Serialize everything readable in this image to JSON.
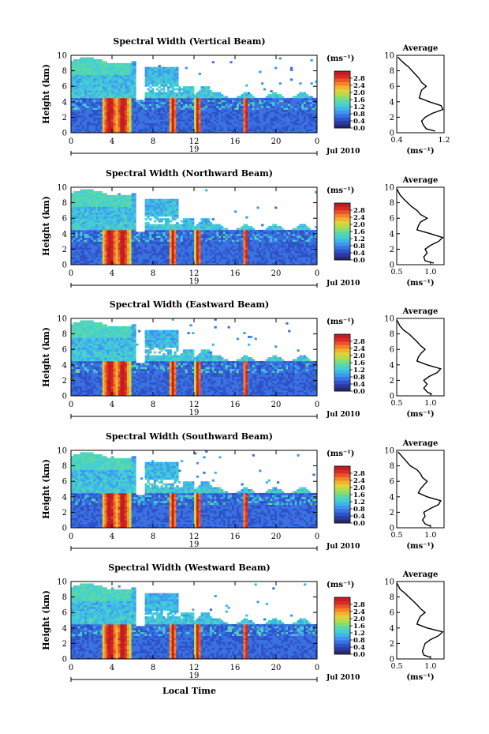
{
  "colors": {
    "colormap": [
      "#2a2a6e",
      "#2a3aa0",
      "#2f52c8",
      "#3a72e0",
      "#3f95f0",
      "#3fb6e8",
      "#45cfd0",
      "#5ad8a8",
      "#86dc78",
      "#b5dc4a",
      "#e0d23a",
      "#f4b02e",
      "#f4822a",
      "#ea5228",
      "#d82a26",
      "#c01e22"
    ],
    "missing": "#ffffff"
  },
  "xlabel": "Local Time",
  "date_label": "Jul 2010",
  "average_title": "Average",
  "colorbar_unit": "(ms⁻¹)",
  "chart_data": [
    {
      "type": "heatmap",
      "title": "Spectral Width (Vertical Beam)",
      "ylabel": "Height (km)",
      "xlim": [
        0,
        24
      ],
      "ylim": [
        0,
        10
      ],
      "xticks": [
        "0",
        "4",
        "8",
        "12",
        "16",
        "20",
        "0"
      ],
      "yticks": [
        "0",
        "2",
        "4",
        "6",
        "8",
        "10"
      ],
      "day_label": "19",
      "colorbar": {
        "ticks": [
          "0.0",
          "0.4",
          "0.8",
          "1.2",
          "1.6",
          "2.0",
          "2.4",
          "2.8"
        ],
        "range": [
          0,
          3.2
        ]
      },
      "average": {
        "xlim": [
          0.4,
          1.2
        ],
        "xticks": [
          "0.4",
          "1.2"
        ],
        "xlabel": "(ms⁻¹)",
        "heights": [
          0.2,
          0.5,
          1.0,
          1.5,
          2.0,
          2.5,
          3.0,
          3.5,
          4.0,
          4.5,
          5.0,
          5.5,
          6.0,
          6.5,
          7.0,
          7.5,
          8.0,
          8.5,
          9.0,
          9.5,
          9.8
        ],
        "values": [
          1.05,
          0.9,
          0.85,
          0.82,
          0.88,
          1.0,
          1.18,
          1.15,
          0.95,
          0.78,
          0.8,
          0.82,
          0.9,
          0.82,
          0.78,
          0.72,
          0.66,
          0.6,
          0.52,
          0.45,
          0.42
        ]
      }
    },
    {
      "type": "heatmap",
      "title": "Spectral Width (Northward Beam)",
      "ylabel": "Height (km)",
      "xlim": [
        0,
        24
      ],
      "ylim": [
        0,
        10
      ],
      "xticks": [
        "0",
        "4",
        "8",
        "12",
        "16",
        "20",
        "0"
      ],
      "yticks": [
        "0",
        "2",
        "4",
        "6",
        "8",
        "10"
      ],
      "day_label": "19",
      "colorbar": {
        "ticks": [
          "0.0",
          "0.4",
          "0.8",
          "1.2",
          "1.6",
          "2.0",
          "2.4",
          "2.8"
        ],
        "range": [
          0,
          3.2
        ]
      },
      "average": {
        "xlim": [
          0.5,
          1.2
        ],
        "xticks": [
          "0.5",
          "1.0"
        ],
        "xlabel": "(ms⁻¹)",
        "heights": [
          0.2,
          0.5,
          1.0,
          1.5,
          2.0,
          2.5,
          3.0,
          3.5,
          4.0,
          4.5,
          5.0,
          5.5,
          6.0,
          6.5,
          7.0,
          7.5,
          8.0,
          8.5,
          9.0,
          9.5,
          9.8
        ],
        "values": [
          1.05,
          0.92,
          0.9,
          0.95,
          0.92,
          1.0,
          1.12,
          1.18,
          1.0,
          0.8,
          0.82,
          0.85,
          0.95,
          0.85,
          0.8,
          0.72,
          0.66,
          0.6,
          0.55,
          0.52,
          0.5
        ]
      }
    },
    {
      "type": "heatmap",
      "title": "Spectral Width (Eastward Beam)",
      "ylabel": "Height (km)",
      "xlim": [
        0,
        24
      ],
      "ylim": [
        0,
        10
      ],
      "xticks": [
        "0",
        "4",
        "8",
        "12",
        "16",
        "20",
        "0"
      ],
      "yticks": [
        "0",
        "2",
        "4",
        "6",
        "8",
        "10"
      ],
      "day_label": "19",
      "colorbar": {
        "ticks": [
          "0.0",
          "0.4",
          "0.8",
          "1.2",
          "1.6",
          "2.0",
          "2.4",
          "2.8"
        ],
        "range": [
          0,
          3.2
        ]
      },
      "average": {
        "xlim": [
          0.5,
          1.2
        ],
        "xticks": [
          "0.5",
          "1.0"
        ],
        "xlabel": "(ms⁻¹)",
        "heights": [
          0.2,
          0.5,
          1.0,
          1.5,
          2.0,
          2.5,
          3.0,
          3.5,
          4.0,
          4.5,
          5.0,
          5.5,
          6.0,
          6.5,
          7.0,
          7.5,
          8.0,
          8.5,
          9.0,
          9.5,
          9.8
        ],
        "values": [
          1.02,
          0.95,
          0.9,
          0.95,
          0.9,
          0.98,
          1.1,
          1.15,
          0.95,
          0.8,
          0.82,
          0.86,
          0.92,
          0.85,
          0.8,
          0.74,
          0.68,
          0.6,
          0.55,
          0.52,
          0.5
        ]
      }
    },
    {
      "type": "heatmap",
      "title": "Spectral Width (Southward Beam)",
      "ylabel": "Height (km)",
      "xlim": [
        0,
        24
      ],
      "ylim": [
        0,
        10
      ],
      "xticks": [
        "0",
        "4",
        "8",
        "12",
        "16",
        "20",
        "0"
      ],
      "yticks": [
        "0",
        "2",
        "4",
        "6",
        "8",
        "10"
      ],
      "day_label": "19",
      "colorbar": {
        "ticks": [
          "0.0",
          "0.4",
          "0.8",
          "1.2",
          "1.6",
          "2.0",
          "2.4",
          "2.8"
        ],
        "range": [
          0,
          3.2
        ]
      },
      "average": {
        "xlim": [
          0.5,
          1.2
        ],
        "xticks": [
          "0.5",
          "1.0"
        ],
        "xlabel": "(ms⁻¹)",
        "heights": [
          0.2,
          0.5,
          1.0,
          1.5,
          2.0,
          2.5,
          3.0,
          3.5,
          4.0,
          4.5,
          5.0,
          5.5,
          6.0,
          6.5,
          7.0,
          7.5,
          8.0,
          8.5,
          9.0,
          9.5,
          9.8
        ],
        "values": [
          1.0,
          0.92,
          0.88,
          0.92,
          0.9,
          1.0,
          1.12,
          1.15,
          0.95,
          0.82,
          0.85,
          0.9,
          0.95,
          0.88,
          0.85,
          0.8,
          0.7,
          0.65,
          0.6,
          0.55,
          0.52
        ]
      }
    },
    {
      "type": "heatmap",
      "title": "Spectral Width (Westward Beam)",
      "ylabel": "Height (km)",
      "xlim": [
        0,
        24
      ],
      "ylim": [
        0,
        10
      ],
      "xticks": [
        "0",
        "4",
        "8",
        "12",
        "16",
        "20",
        "0"
      ],
      "yticks": [
        "0",
        "2",
        "4",
        "6",
        "8",
        "10"
      ],
      "day_label": "19",
      "colorbar": {
        "ticks": [
          "0.0",
          "0.4",
          "0.8",
          "1.2",
          "1.6",
          "2.0",
          "2.4",
          "2.8"
        ],
        "range": [
          0,
          3.2
        ]
      },
      "average": {
        "xlim": [
          0.5,
          1.2
        ],
        "xticks": [
          "0.5",
          "1.0"
        ],
        "xlabel": "(ms⁻¹)",
        "heights": [
          0.2,
          0.5,
          1.0,
          1.5,
          2.0,
          2.5,
          3.0,
          3.5,
          4.0,
          4.5,
          5.0,
          5.5,
          6.0,
          6.5,
          7.0,
          7.5,
          8.0,
          8.5,
          9.0,
          9.5,
          9.8
        ],
        "values": [
          1.0,
          0.9,
          0.88,
          0.9,
          0.92,
          1.0,
          1.12,
          1.18,
          0.95,
          0.8,
          0.82,
          0.85,
          0.92,
          0.85,
          0.8,
          0.74,
          0.68,
          0.62,
          0.55,
          0.52,
          0.5
        ]
      }
    }
  ]
}
